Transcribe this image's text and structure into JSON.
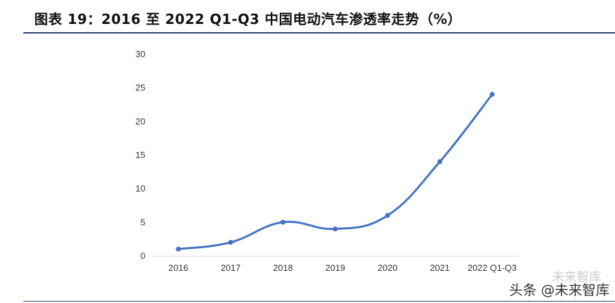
{
  "title": "图表 19：2016 至 2022 Q1-Q3 中国电动汽车渗透率走势（%）",
  "watermark": {
    "main": "头条 @未来智库",
    "faint": "未来智库"
  },
  "colors": {
    "line": "#4472C4",
    "rule": "#24406e"
  },
  "chart_data": {
    "type": "line",
    "title": "",
    "xlabel": "",
    "ylabel": "",
    "categories": [
      "2016",
      "2017",
      "2018",
      "2019",
      "2020",
      "2021",
      "2022 Q1-Q3"
    ],
    "series": [
      {
        "values": [
          1,
          2,
          5,
          4,
          6,
          14,
          24
        ]
      }
    ],
    "ylim": [
      0,
      30
    ],
    "yticks": [
      "0",
      "5",
      "10",
      "15",
      "20",
      "25",
      "30"
    ],
    "smooth": true,
    "markers": true,
    "grid": false,
    "legend": "none"
  }
}
